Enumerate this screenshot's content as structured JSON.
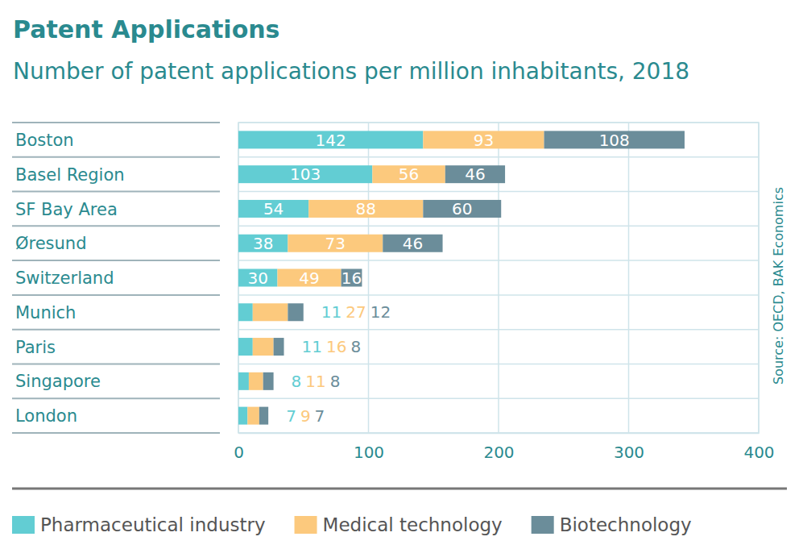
{
  "chart_data": {
    "type": "bar",
    "orientation": "horizontal",
    "stacked": true,
    "data_labels": true,
    "grid": true,
    "legend": "bottom",
    "title": "Patent Applications",
    "subtitle": "Number of patent applications per million inhabitants, 2018",
    "source": "Source: OECD, BAK Economics",
    "categories": [
      "Boston",
      "Basel Region",
      "SF Bay Area",
      "Øresund",
      "Switzerland",
      "Munich",
      "Paris",
      "Singapore",
      "London"
    ],
    "series": [
      {
        "name": "Pharmaceutical industry",
        "color": "#62cdd3",
        "values": [
          142,
          103,
          54,
          38,
          30,
          11,
          11,
          8,
          7
        ]
      },
      {
        "name": "Medical technology",
        "color": "#fcc97d",
        "values": [
          93,
          56,
          88,
          73,
          49,
          27,
          16,
          11,
          9
        ]
      },
      {
        "name": "Biotechnology",
        "color": "#6b8d9a",
        "values": [
          108,
          46,
          60,
          46,
          16,
          12,
          8,
          8,
          7
        ]
      }
    ],
    "xlim": [
      0,
      400
    ],
    "xticks": [
      0,
      100,
      200,
      300,
      400
    ]
  }
}
